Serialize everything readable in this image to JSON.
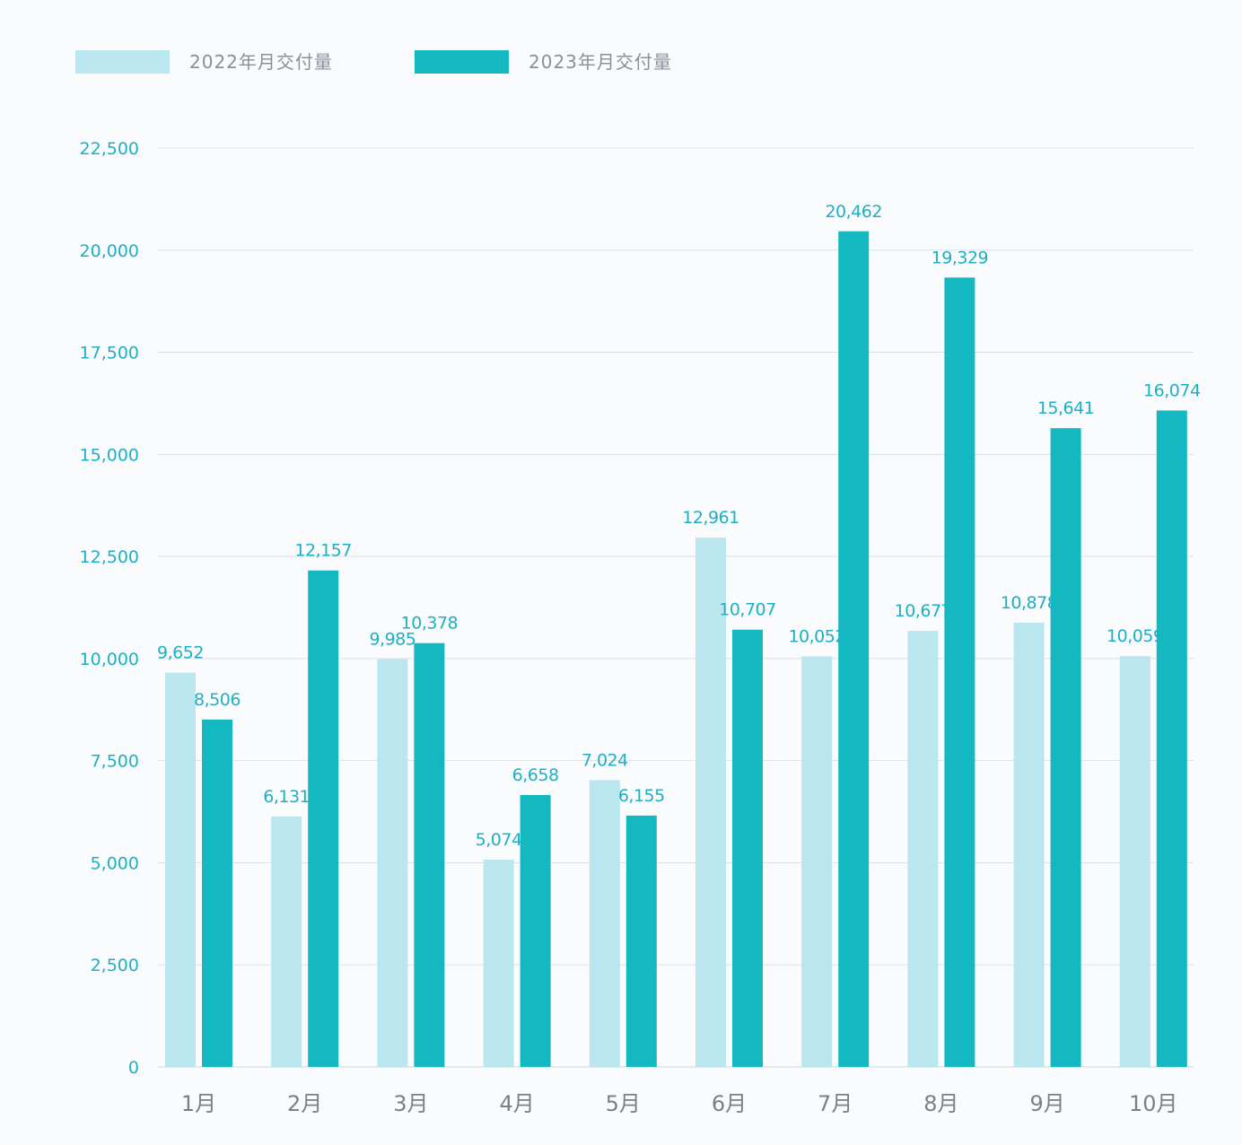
{
  "chart_data": {
    "type": "bar",
    "title": "",
    "xlabel": "",
    "ylabel": "",
    "categories": [
      "1月",
      "2月",
      "3月",
      "4月",
      "5月",
      "6月",
      "7月",
      "8月",
      "9月",
      "10月"
    ],
    "series": [
      {
        "name": "2022年月交付量",
        "color": "#b9e6ef",
        "values": [
          9652,
          6131,
          9985,
          5074,
          7024,
          12961,
          10052,
          10677,
          10878,
          10059
        ],
        "labels": [
          "9,652",
          "6,131",
          "9,985",
          "5,074",
          "7,024",
          "12,961",
          "10,052",
          "10,677",
          "10,878",
          "10,059"
        ]
      },
      {
        "name": "2023年月交付量",
        "color": "#14b8c0",
        "values": [
          8506,
          12157,
          10378,
          6658,
          6155,
          10707,
          20462,
          19329,
          15641,
          16074
        ],
        "labels": [
          "8,506",
          "12,157",
          "10,378",
          "6,658",
          "6,155",
          "10,707",
          "20,462",
          "19,329",
          "15,641",
          "16,074"
        ]
      }
    ],
    "ylim": [
      0,
      22500
    ],
    "yticks": [
      0,
      2500,
      5000,
      7500,
      10000,
      12500,
      15000,
      17500,
      20000,
      22500
    ],
    "ytick_labels": [
      "0",
      "2,500",
      "5,000",
      "7,500",
      "10,000",
      "12,500",
      "15,000",
      "17,500",
      "20,000",
      "22,500"
    ],
    "grid": true,
    "legend_position": "top-left",
    "colors": {
      "axis_text": "#1db0c4",
      "category_text": "#7a7f88",
      "grid": "#dde1e6"
    }
  }
}
